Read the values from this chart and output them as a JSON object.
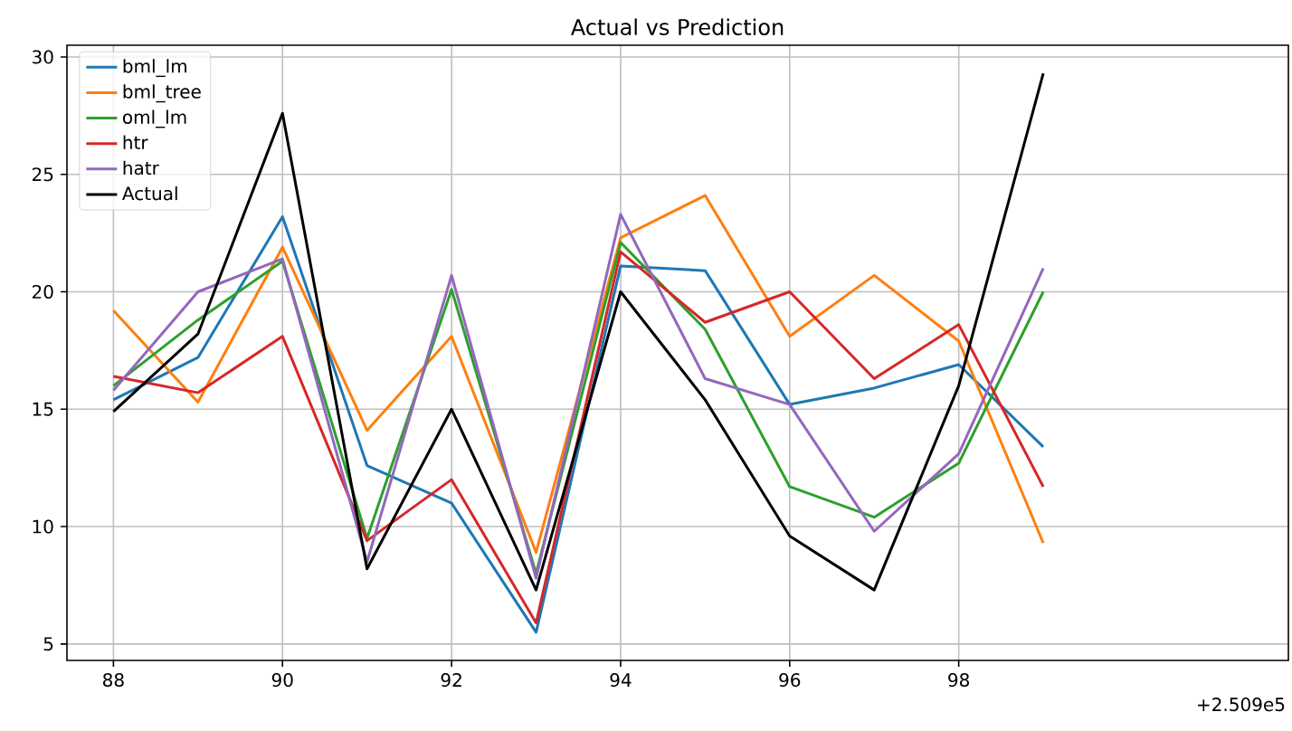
{
  "chart_data": {
    "type": "line",
    "title": "Actual vs Prediction",
    "x": [
      88,
      89,
      90,
      91,
      92,
      93,
      94,
      95,
      96,
      97,
      98,
      99
    ],
    "series": [
      {
        "name": "bml_lm",
        "color": "#1f77b4",
        "values": [
          15.4,
          17.2,
          23.2,
          12.6,
          11.0,
          5.5,
          21.1,
          20.9,
          15.2,
          15.9,
          16.9,
          13.4
        ]
      },
      {
        "name": "bml_tree",
        "color": "#ff7f0e",
        "values": [
          19.2,
          15.3,
          21.9,
          14.1,
          18.1,
          8.9,
          22.3,
          24.1,
          18.1,
          20.7,
          17.9,
          9.3
        ]
      },
      {
        "name": "oml_lm",
        "color": "#2ca02c",
        "values": [
          16.0,
          18.8,
          21.3,
          9.5,
          20.1,
          8.0,
          22.1,
          18.4,
          11.7,
          10.4,
          12.7,
          20.0
        ]
      },
      {
        "name": "htr",
        "color": "#d62728",
        "values": [
          16.4,
          15.7,
          18.1,
          9.4,
          12.0,
          5.9,
          21.7,
          18.7,
          20.0,
          16.3,
          18.6,
          11.7
        ]
      },
      {
        "name": "hatr",
        "color": "#9467bd",
        "values": [
          15.8,
          20.0,
          21.4,
          8.5,
          20.7,
          7.8,
          23.3,
          16.3,
          15.2,
          9.8,
          13.1,
          21.0
        ]
      },
      {
        "name": "Actual",
        "color": "#000000",
        "values": [
          14.9,
          18.2,
          27.6,
          8.2,
          15.0,
          7.3,
          20.0,
          15.4,
          9.6,
          7.3,
          16.0,
          29.3
        ]
      }
    ],
    "xlim": [
      87.45,
      101.9
    ],
    "ylim": [
      4.3,
      30.5
    ],
    "xticks": [
      88,
      90,
      92,
      94,
      96,
      98
    ],
    "yticks": [
      5,
      10,
      15,
      20,
      25,
      30
    ],
    "annotations": [
      "+2.509e5"
    ],
    "grid": true,
    "legend": "top left",
    "marker": "none",
    "line_style": "solid"
  }
}
